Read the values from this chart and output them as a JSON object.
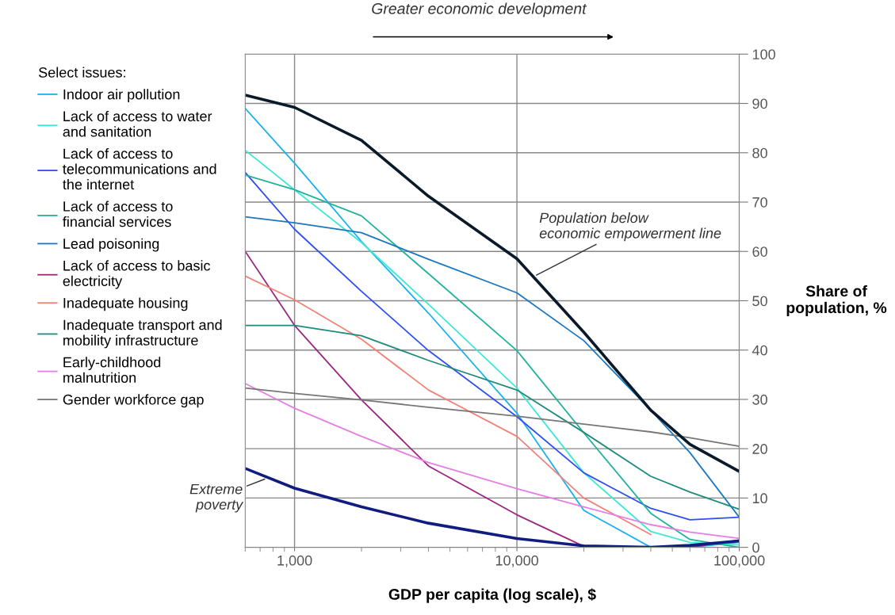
{
  "chart_data": {
    "type": "line",
    "xlabel": "GDP per capita (log scale), $",
    "ylabel": "Share of population, %",
    "legend_title": "Select issues:",
    "legend": "left",
    "log": "x",
    "grid": true,
    "x": [
      600,
      1000,
      2000,
      4000,
      10000,
      20000,
      40000,
      60000,
      100000
    ],
    "xlim": [
      600,
      100000
    ],
    "xticks": [
      {
        "value": 1000,
        "label": "1,000"
      },
      {
        "value": 10000,
        "label": "10,000"
      },
      {
        "value": 100000,
        "label": "100,000"
      }
    ],
    "ylim": [
      0,
      100
    ],
    "yticks": [
      0,
      10,
      20,
      30,
      40,
      50,
      60,
      70,
      80,
      90,
      100
    ],
    "series": [
      {
        "name": "Indoor air pollution",
        "color": "#1ab2ec",
        "values": [
          89,
          77.9,
          62,
          47.5,
          27.2,
          7.5,
          0,
          0,
          1.0
        ]
      },
      {
        "name": "Lack of access to water and sanitation",
        "color": "#3de8d8",
        "values": [
          80.5,
          72.5,
          61.8,
          49.3,
          32.3,
          15.1,
          3.2,
          1.0,
          0.5
        ]
      },
      {
        "name": "Lack of access to telecommunications and the internet",
        "color": "#2d4ff5",
        "values": [
          76,
          64.5,
          51.9,
          39.9,
          26.5,
          15.1,
          7.9,
          5.6,
          6.1
        ]
      },
      {
        "name": "Lack of access to financial services",
        "color": "#21b29c",
        "values": [
          75.5,
          72.5,
          67.2,
          55.5,
          39.9,
          23.2,
          6.9,
          1.6,
          0
        ]
      },
      {
        "name": "Lead poisoning",
        "color": "#1c78c0",
        "values": [
          67,
          65.8,
          63.8,
          58.4,
          51.6,
          41.9,
          27.8,
          19.2,
          6.1
        ]
      },
      {
        "name": "Lack of access to basic electricity",
        "color": "#9a2783",
        "values": [
          60,
          45,
          29.9,
          16.5,
          6.6,
          0.2,
          0,
          0,
          1.5
        ]
      },
      {
        "name": "Inadequate housing",
        "color": "#f28379",
        "values": [
          55,
          50.2,
          42.2,
          31.9,
          22.5,
          10,
          2.6,
          null,
          null
        ]
      },
      {
        "name": "Inadequate transport and mobility infrastructure",
        "color": "#1d8c7c",
        "values": [
          45,
          45,
          42.9,
          37.9,
          31.9,
          23.3,
          14.4,
          11.2,
          7.7
        ]
      },
      {
        "name": "Early-childhood malnutrition",
        "color": "#e57ee5",
        "values": [
          33.2,
          28.2,
          22.5,
          17.2,
          11.9,
          8.2,
          4.6,
          3.1,
          1.8
        ]
      },
      {
        "name": "Gender workforce gap",
        "color": "#777777",
        "values": [
          32.3,
          31.2,
          29.9,
          28.4,
          26.6,
          25.0,
          23.4,
          22.2,
          20.5
        ]
      },
      {
        "color": "#0a1a2a",
        "values": [
          91.7,
          89.2,
          82.5,
          71.2,
          58.5,
          43.6,
          27.8,
          20.9,
          15.4
        ]
      },
      {
        "color": "#101c80",
        "values": [
          16,
          12.0,
          8.2,
          4.9,
          1.8,
          0.3,
          0,
          0.4,
          1.3
        ]
      }
    ],
    "annotations": [
      {
        "text": "Population below\neconomic empowerment line",
        "x": 12000,
        "y": 55
      },
      {
        "text": "Extreme\npoverty",
        "x": 750,
        "y": 14
      },
      "Greater economic development"
    ]
  }
}
